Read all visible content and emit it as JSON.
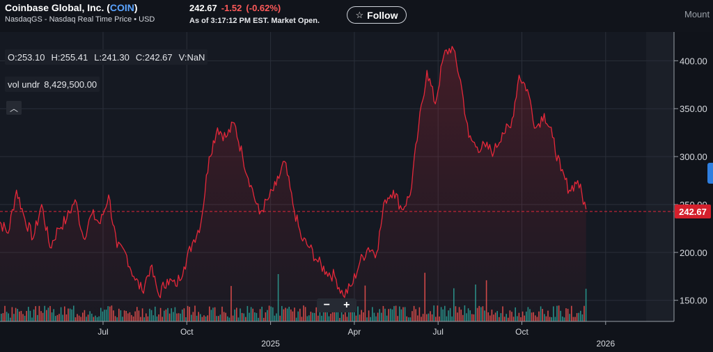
{
  "header": {
    "company": "Coinbase Global, Inc.",
    "ticker": "COIN",
    "exchange": "NasdaqGS - Nasdaq Real Time Price • USD",
    "price": "242.67",
    "change": "-1.52",
    "change_pct": "(-0.62%)",
    "as_of": "As of 3:17:12 PM EST. Market Open.",
    "follow_label": "Follow",
    "right_text": "Mount"
  },
  "ohlc": {
    "open": "O:253.10",
    "high": "H:255.41",
    "low": "L:241.30",
    "close": "C:242.67",
    "volume": "V:NaN"
  },
  "vol_label": "vol undr",
  "vol_value": "8,429,500.00",
  "zoom": {
    "minus": "−",
    "plus": "+"
  },
  "icons": {
    "collapse": "chevron-up-icon",
    "follow": "star-icon"
  },
  "colors": {
    "line": "#e5283a",
    "up_volume": "#26a69a",
    "down_volume": "#ef5350",
    "price_label_bg": "#d4202c"
  },
  "chart_data": {
    "type": "line",
    "x_labels": [
      "Jul",
      "Oct",
      "2025",
      "Apr",
      "Jul",
      "Oct",
      "2026"
    ],
    "x_label_months": [
      11,
      14,
      17,
      20,
      23,
      26,
      29
    ],
    "y_ticks": [
      150,
      200,
      250,
      300,
      350,
      400
    ],
    "y_tick_labels": [
      "150.00",
      "200.00",
      "250.00",
      "300.00",
      "350.00",
      "400.00"
    ],
    "ylim": [
      128,
      430
    ],
    "current_price": 242.67,
    "current_price_label": "242.67",
    "series": [
      {
        "months": [
          7.0,
          7.3,
          7.6,
          7.9,
          8.2,
          8.5,
          8.8,
          9.1,
          9.4,
          9.7,
          10.0,
          10.3,
          10.6,
          10.9,
          11.2,
          11.5,
          11.8,
          12.1,
          12.4,
          12.7,
          13.0,
          13.3,
          13.6,
          13.9,
          14.2,
          14.5,
          14.8,
          15.1,
          15.4,
          15.7,
          16.0,
          16.3,
          16.6,
          16.9,
          17.2,
          17.5,
          17.8,
          18.1,
          18.4,
          18.7,
          19.0,
          19.3,
          19.6,
          19.9,
          20.2,
          20.5,
          20.8,
          21.1,
          21.4,
          21.7,
          22.0,
          22.3,
          22.6,
          22.9,
          23.2,
          23.5,
          23.8,
          24.1,
          24.4,
          24.7,
          25.0,
          25.3,
          25.6,
          25.9,
          26.2,
          26.5,
          26.8,
          27.1,
          27.4,
          27.7,
          28.0,
          28.3
        ],
        "close": [
          240,
          232,
          220,
          265,
          235,
          215,
          250,
          205,
          225,
          235,
          255,
          215,
          240,
          230,
          260,
          205,
          200,
          175,
          160,
          185,
          155,
          172,
          165,
          185,
          210,
          230,
          300,
          330,
          320,
          335,
          300,
          270,
          240,
          255,
          270,
          295,
          250,
          215,
          205,
          190,
          180,
          175,
          155,
          165,
          190,
          205,
          200,
          255,
          265,
          245,
          260,
          330,
          390,
          355,
          405,
          415,
          380,
          320,
          310,
          310,
          305,
          325,
          330,
          385,
          370,
          330,
          345,
          320,
          285,
          265,
          275,
          245
        ]
      }
    ],
    "volume_note": "daily volume bars along the bottom (green/red)"
  }
}
